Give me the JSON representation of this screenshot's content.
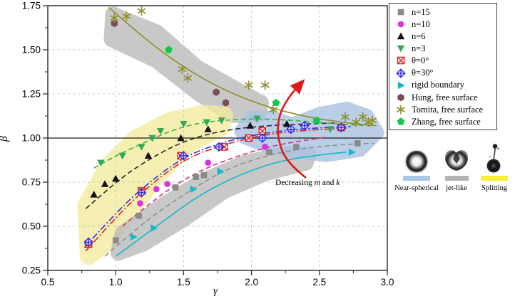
{
  "axes": {
    "x_label": "γ",
    "y_label": "β"
  },
  "annotation": {
    "prefix": "Decreasing ",
    "var1": "m",
    "mid": " and ",
    "var2": "k"
  },
  "legend": {
    "items": [
      {
        "label": "n=15",
        "marker": "square",
        "color": "#8a8a8a"
      },
      {
        "label": "n=10",
        "marker": "circle",
        "color": "#d935d9"
      },
      {
        "label": "n=6",
        "marker": "tri-up",
        "color": "#111111"
      },
      {
        "label": "n=3",
        "marker": "tri-down",
        "color": "#35a855"
      },
      {
        "label": "θ=0°",
        "marker": "crossed-square",
        "color": "#e81e1e"
      },
      {
        "label": "θ=30°",
        "marker": "crossed-diamond",
        "color": "#2d2de0"
      },
      {
        "label": "rigid boundary",
        "marker": "tri-right",
        "color": "#18b7c9"
      },
      {
        "label": "Hung, free surface",
        "marker": "hexagon",
        "color": "#7a4f4f"
      },
      {
        "label": "Tomita, free surface",
        "marker": "asterisk",
        "color": "#8f8f2f"
      },
      {
        "label": "Zhang, free surface",
        "marker": "pentagon",
        "color": "#0fc945"
      }
    ]
  },
  "classification": {
    "items": [
      {
        "label": "Near-spherical",
        "shape": "sphere",
        "swatch": "#a9c7e9",
        "swatch_w": 38
      },
      {
        "label": "jet-like",
        "shape": "jet",
        "swatch": "#b3b3b3",
        "swatch_w": 33
      },
      {
        "label": "Splitting",
        "shape": "split",
        "swatch": "#f7ef3a",
        "swatch_w": 38
      }
    ]
  },
  "chart_data": {
    "type": "scatter",
    "xlabel": "γ",
    "ylabel": "β",
    "xlim": [
      0.5,
      3.0
    ],
    "ylim": [
      0.25,
      1.75
    ],
    "x_ticks": [
      0.5,
      1.0,
      1.5,
      2.0,
      2.5,
      3.0
    ],
    "x_tick_labels": [
      "0.5",
      "1.0",
      "1.5",
      "2.0",
      "2.5",
      "3.0"
    ],
    "y_ticks": [
      0.25,
      0.5,
      0.75,
      1.0,
      1.25,
      1.5,
      1.75
    ],
    "y_tick_labels": [
      "0.25",
      "0.50",
      "0.75",
      "1.00",
      "1.25",
      "1.50",
      "1.75"
    ],
    "grid_x": [
      1.0,
      1.5,
      2.0,
      2.5
    ],
    "grid_y": [
      0.5,
      0.75,
      1.25,
      1.5
    ],
    "reference_line_y": 1.0,
    "series": [
      {
        "name": "n=15",
        "marker": "square",
        "color": "#8a8a8a",
        "line_style": "dashed",
        "line_color": "#909090",
        "points": [
          [
            1.0,
            0.42
          ],
          [
            1.17,
            0.56
          ],
          [
            1.44,
            0.72
          ],
          [
            1.59,
            0.78
          ],
          [
            1.65,
            0.79
          ],
          [
            2.13,
            0.92
          ],
          [
            2.33,
            0.95
          ],
          [
            2.78,
            0.97
          ]
        ],
        "fit_line": [
          [
            0.92,
            0.33
          ],
          [
            1.2,
            0.52
          ],
          [
            1.5,
            0.68
          ],
          [
            1.8,
            0.82
          ],
          [
            2.1,
            0.9
          ],
          [
            2.4,
            0.945
          ],
          [
            2.7,
            0.965
          ],
          [
            2.9,
            0.97
          ]
        ]
      },
      {
        "name": "n=10",
        "marker": "circle",
        "color": "#d935d9",
        "line_style": "dashed",
        "line_color": "#d4317e",
        "points": [
          [
            1.18,
            0.63
          ],
          [
            1.3,
            0.71
          ],
          [
            1.38,
            0.74
          ],
          [
            1.68,
            0.86
          ],
          [
            2.1,
            0.95
          ]
        ],
        "fit_line": [
          [
            1.05,
            0.5
          ],
          [
            1.3,
            0.665
          ],
          [
            1.6,
            0.81
          ],
          [
            1.9,
            0.9
          ],
          [
            2.2,
            0.965
          ],
          [
            2.55,
            1.005
          ]
        ]
      },
      {
        "name": "n=6",
        "marker": "tri-up",
        "color": "#111111",
        "line_style": "dashed",
        "line_color": "#2a2a2a",
        "points": [
          [
            0.84,
            0.68
          ],
          [
            0.92,
            0.74
          ],
          [
            1.0,
            0.77
          ],
          [
            1.24,
            0.9
          ],
          [
            1.48,
            1.0
          ],
          [
            1.68,
            1.05
          ],
          [
            1.99,
            1.07
          ],
          [
            2.26,
            1.08
          ]
        ],
        "fit_line": [
          [
            0.78,
            0.6
          ],
          [
            1.0,
            0.75
          ],
          [
            1.2,
            0.86
          ],
          [
            1.5,
            0.985
          ],
          [
            1.8,
            1.045
          ],
          [
            2.1,
            1.07
          ],
          [
            2.4,
            1.08
          ],
          [
            2.62,
            1.085
          ]
        ]
      },
      {
        "name": "n=3",
        "marker": "tri-down",
        "color": "#35a855",
        "line_style": "dashed",
        "line_color": "#3cb44a",
        "points": [
          [
            0.89,
            0.86
          ],
          [
            1.05,
            0.9
          ],
          [
            1.19,
            0.95
          ],
          [
            1.27,
            1.0
          ],
          [
            1.33,
            1.04
          ],
          [
            1.5,
            1.08
          ],
          [
            1.67,
            1.09
          ],
          [
            1.78,
            1.1
          ],
          [
            2.04,
            1.11
          ],
          [
            2.58,
            1.05
          ]
        ],
        "fit_line": [
          [
            0.84,
            0.83
          ],
          [
            1.0,
            0.9
          ],
          [
            1.2,
            0.97
          ],
          [
            1.4,
            1.04
          ],
          [
            1.6,
            1.085
          ],
          [
            1.85,
            1.105
          ],
          [
            2.1,
            1.11
          ],
          [
            2.4,
            1.095
          ],
          [
            2.7,
            1.075
          ],
          [
            2.88,
            1.07
          ]
        ]
      },
      {
        "name": "θ=0°",
        "marker": "crossed-square",
        "color": "#e81e1e",
        "line_style": "dash-dot",
        "line_color": "#e81e1e",
        "points": [
          [
            0.8,
            0.4
          ],
          [
            1.19,
            0.7
          ],
          [
            1.48,
            0.9
          ],
          [
            1.8,
            0.95
          ],
          [
            1.98,
            1.0
          ],
          [
            2.08,
            1.04
          ],
          [
            2.66,
            1.06
          ]
        ],
        "fit_line": [
          [
            0.78,
            0.36
          ],
          [
            1.0,
            0.55
          ],
          [
            1.2,
            0.7
          ],
          [
            1.5,
            0.88
          ],
          [
            1.8,
            0.965
          ],
          [
            2.1,
            1.02
          ],
          [
            2.4,
            1.045
          ],
          [
            2.7,
            1.055
          ]
        ]
      },
      {
        "name": "θ=30°",
        "marker": "crossed-diamond",
        "color": "#2d2de0",
        "line_style": "dash-dot",
        "line_color": "#2d2de0",
        "points": [
          [
            0.8,
            0.41
          ],
          [
            1.19,
            0.69
          ],
          [
            1.5,
            0.9
          ],
          [
            1.76,
            0.95
          ],
          [
            2.08,
            1.0
          ],
          [
            2.29,
            1.05
          ],
          [
            2.39,
            1.07
          ],
          [
            2.66,
            1.06
          ]
        ],
        "fit_line": [
          [
            0.77,
            0.38
          ],
          [
            1.0,
            0.575
          ],
          [
            1.2,
            0.72
          ],
          [
            1.5,
            0.895
          ],
          [
            1.8,
            0.98
          ],
          [
            2.1,
            1.03
          ],
          [
            2.4,
            1.055
          ],
          [
            2.73,
            1.065
          ]
        ]
      },
      {
        "name": "rigid boundary",
        "marker": "tri-right",
        "color": "#18b7c9",
        "line_style": "solid",
        "line_color": "#18b7c9",
        "arrow_end": true,
        "points": [
          [
            1.13,
            0.44
          ],
          [
            1.28,
            0.49
          ],
          [
            1.57,
            0.71
          ],
          [
            1.77,
            0.81
          ]
        ],
        "fit_line": [
          [
            1.0,
            0.33
          ],
          [
            1.3,
            0.5
          ],
          [
            1.6,
            0.67
          ],
          [
            1.9,
            0.79
          ],
          [
            2.2,
            0.87
          ],
          [
            2.5,
            0.905
          ],
          [
            2.7,
            0.92
          ]
        ]
      },
      {
        "name": "Hung, free surface",
        "marker": "hexagon",
        "color": "#7a4f4f",
        "line_style": "none",
        "line_color": "",
        "points": [
          [
            0.99,
            1.65
          ],
          [
            1.74,
            1.26
          ],
          [
            1.81,
            1.2
          ]
        ],
        "fit_line": []
      },
      {
        "name": "Tomita, free surface",
        "marker": "asterisk",
        "color": "#8f8f2f",
        "line_style": "solid",
        "line_color": "#8f8f2f",
        "points": [
          [
            0.99,
            1.68
          ],
          [
            1.08,
            1.69
          ],
          [
            1.19,
            1.72
          ],
          [
            1.49,
            1.39
          ],
          [
            1.53,
            1.34
          ],
          [
            1.98,
            1.3
          ],
          [
            2.1,
            1.3
          ],
          [
            2.16,
            1.16
          ],
          [
            2.69,
            1.12
          ],
          [
            2.77,
            1.09
          ],
          [
            2.82,
            1.12
          ],
          [
            2.86,
            1.09
          ],
          [
            2.89,
            1.1
          ]
        ],
        "fit_line": [
          [
            0.95,
            1.74
          ],
          [
            1.2,
            1.57
          ],
          [
            1.5,
            1.4
          ],
          [
            1.8,
            1.27
          ],
          [
            2.1,
            1.18
          ],
          [
            2.4,
            1.12
          ],
          [
            2.7,
            1.085
          ],
          [
            2.92,
            1.07
          ]
        ]
      },
      {
        "name": "Zhang, free surface",
        "marker": "pentagon",
        "color": "#0fc945",
        "line_style": "none",
        "line_color": "",
        "points": [
          [
            1.39,
            1.5
          ],
          [
            2.18,
            1.2
          ],
          [
            2.48,
            1.1
          ]
        ],
        "fit_line": []
      }
    ],
    "regions": [
      {
        "name": "jet-like-upper",
        "color": "#b4b4b4",
        "opacity": 0.72,
        "stroke_width": 22,
        "points": [
          [
            0.98,
            1.7
          ],
          [
            1.3,
            1.6
          ],
          [
            1.6,
            1.4
          ],
          [
            1.9,
            1.27
          ],
          [
            2.07,
            1.2
          ],
          [
            2.05,
            1.13
          ],
          [
            1.85,
            1.13
          ],
          [
            1.6,
            1.26
          ],
          [
            1.3,
            1.44
          ],
          [
            0.97,
            1.56
          ]
        ]
      },
      {
        "name": "splitting",
        "color": "#f3eda0",
        "opacity": 0.8,
        "stroke_width": 24,
        "points": [
          [
            0.78,
            0.62
          ],
          [
            0.95,
            0.85
          ],
          [
            1.15,
            1.0
          ],
          [
            1.4,
            1.1
          ],
          [
            1.65,
            1.14
          ],
          [
            1.8,
            1.13
          ],
          [
            1.78,
            1.06
          ],
          [
            1.55,
            0.97
          ],
          [
            1.3,
            0.78
          ],
          [
            1.1,
            0.58
          ],
          [
            0.92,
            0.4
          ],
          [
            0.8,
            0.33
          ]
        ]
      },
      {
        "name": "jet-like-lower",
        "color": "#b4b4b4",
        "opacity": 0.72,
        "stroke_width": 22,
        "points": [
          [
            1.05,
            0.46
          ],
          [
            1.35,
            0.62
          ],
          [
            1.65,
            0.76
          ],
          [
            1.95,
            0.86
          ],
          [
            2.25,
            0.91
          ],
          [
            2.42,
            0.91
          ],
          [
            2.4,
            0.86
          ],
          [
            2.1,
            0.8
          ],
          [
            1.8,
            0.7
          ],
          [
            1.5,
            0.54
          ],
          [
            1.2,
            0.4
          ],
          [
            1.02,
            0.35
          ]
        ]
      },
      {
        "name": "near-spherical",
        "color": "#a9c3e2",
        "opacity": 0.8,
        "stroke_width": 18,
        "points": [
          [
            1.92,
            1.04
          ],
          [
            2.0,
            1.12
          ],
          [
            2.15,
            1.12
          ],
          [
            2.3,
            1.08
          ],
          [
            2.5,
            1.14
          ],
          [
            2.7,
            1.17
          ],
          [
            2.85,
            1.13
          ],
          [
            2.93,
            1.03
          ],
          [
            2.8,
            0.93
          ],
          [
            2.55,
            0.9
          ],
          [
            2.25,
            0.93
          ],
          [
            2.05,
            0.97
          ],
          [
            1.95,
            1.0
          ]
        ]
      }
    ],
    "flow_arrow": {
      "color": "#e01818",
      "points": [
        [
          2.4,
          0.775
        ],
        [
          2.26,
          0.86
        ],
        [
          2.19,
          1.0
        ],
        [
          2.2,
          1.13
        ],
        [
          2.28,
          1.24
        ],
        [
          2.37,
          1.315
        ]
      ],
      "label": "Decreasing m and k"
    }
  }
}
